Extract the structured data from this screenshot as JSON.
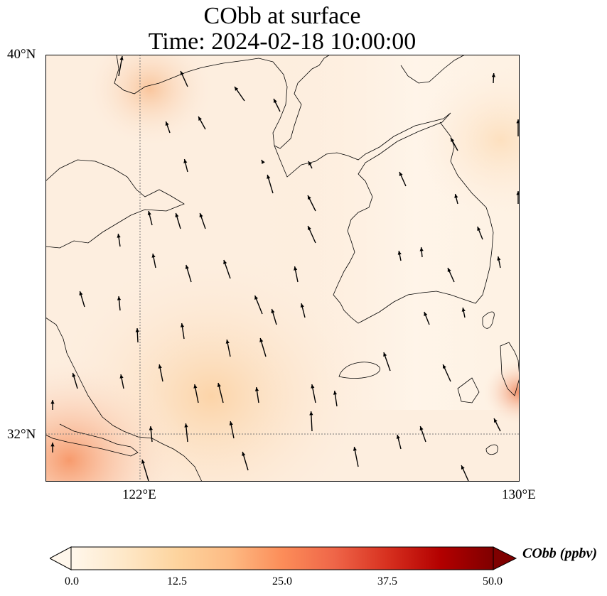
{
  "title": {
    "line1": "CObb at surface",
    "line2": "Time: 2024-02-18 10:00:00"
  },
  "axes": {
    "lat_ticks": [
      {
        "label": "40°N",
        "value": 40
      },
      {
        "label": "32°N",
        "value": 32
      }
    ],
    "lon_ticks": [
      {
        "label": "122°E",
        "value": 122
      },
      {
        "label": "130°E",
        "value": 130
      }
    ],
    "extent": {
      "lon_min": 120,
      "lon_max": 130,
      "lat_min": 31,
      "lat_max": 40
    }
  },
  "colorbar": {
    "label": "CObb (ppbv)",
    "ticks": [
      "0.0",
      "12.5",
      "25.0",
      "37.5",
      "50.0"
    ],
    "range": [
      0,
      50
    ],
    "colormap": "OrRd-like",
    "colors": [
      "#fff7ec",
      "#fee8c8",
      "#fdd49e",
      "#fdbb84",
      "#fc8d59",
      "#ef6548",
      "#d7301f",
      "#b30000",
      "#7f0000"
    ]
  },
  "colors": {
    "background_field": "#fdeee0",
    "coast": "#000000",
    "arrow": "#000000",
    "grid": "#666666"
  }
}
